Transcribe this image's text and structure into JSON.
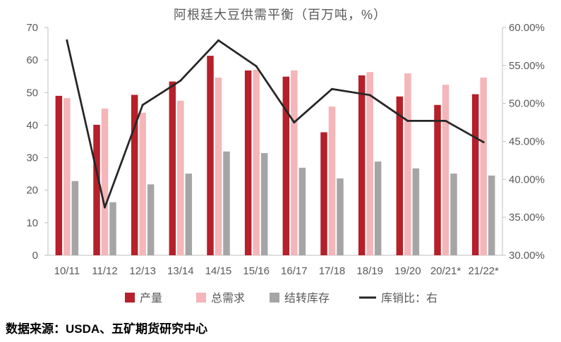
{
  "source": "数据来源：USDA、五矿期货研究中心",
  "chart_data": {
    "type": "bar",
    "title": "阿根廷大豆供需平衡（百万吨，%）",
    "categories": [
      "10/11",
      "11/12",
      "12/13",
      "13/14",
      "14/15",
      "15/16",
      "16/17",
      "17/18",
      "18/19",
      "19/20",
      "20/21*",
      "21/22*"
    ],
    "series": [
      {
        "name": "产量",
        "type": "bar",
        "axis": "left",
        "color": "#B5202A",
        "values": [
          49.0,
          40.1,
          49.3,
          53.4,
          61.3,
          56.8,
          54.9,
          37.8,
          55.3,
          48.8,
          46.2,
          49.5
        ]
      },
      {
        "name": "总需求",
        "type": "bar",
        "axis": "left",
        "color": "#F4B6B9",
        "values": [
          48.3,
          45.1,
          43.8,
          47.5,
          54.6,
          57.0,
          56.8,
          45.7,
          56.3,
          55.9,
          52.4,
          54.6
        ]
      },
      {
        "name": "结转库存",
        "type": "bar",
        "axis": "left",
        "color": "#A5A5A5",
        "values": [
          22.8,
          16.3,
          21.8,
          25.1,
          31.9,
          31.4,
          26.9,
          23.6,
          28.8,
          26.7,
          25.1,
          24.5
        ]
      },
      {
        "name": "库销比：右",
        "type": "line",
        "axis": "right",
        "color": "#262626",
        "values": [
          58.3,
          36.3,
          49.8,
          53.0,
          58.3,
          54.9,
          47.5,
          51.9,
          51.1,
          47.7,
          47.7,
          44.9
        ]
      }
    ],
    "y_left": {
      "min": 0,
      "max": 70,
      "ticks": [
        0,
        10,
        20,
        30,
        40,
        50,
        60,
        70
      ],
      "tick_labels": [
        "0",
        "10",
        "20",
        "30",
        "40",
        "50",
        "60",
        "70"
      ]
    },
    "y_right": {
      "min": 30,
      "max": 60,
      "ticks": [
        30,
        35,
        40,
        45,
        50,
        55,
        60
      ],
      "tick_labels": [
        "30.00%",
        "35.00%",
        "40.00%",
        "45.00%",
        "50.00%",
        "55.00%",
        "60.00%"
      ]
    },
    "grid": false,
    "legend": "bottom"
  }
}
